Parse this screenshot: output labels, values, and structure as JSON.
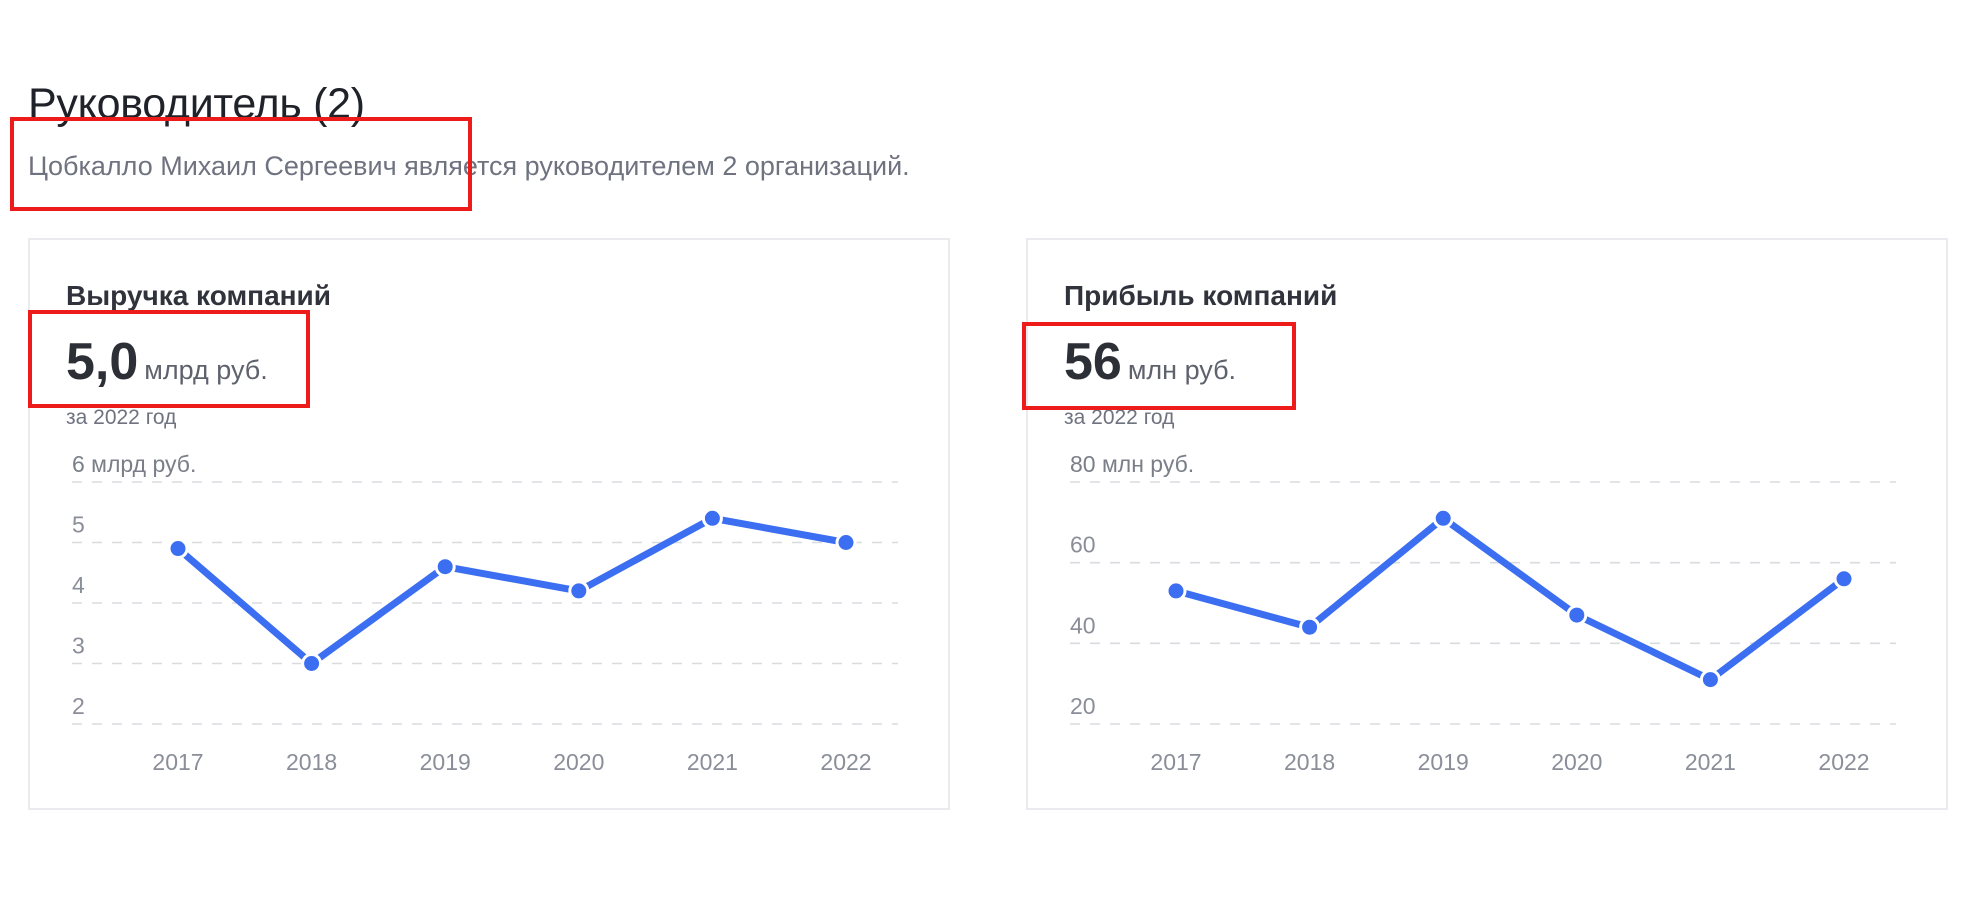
{
  "section": {
    "title": "Руководитель (2)",
    "description": "Цобкалло Михаил Сергеевич является руководителем 2 организаций."
  },
  "cards": [
    {
      "title": "Выручка компаний",
      "value": "5,0",
      "unit": "млрд руб.",
      "period": "за 2022 год"
    },
    {
      "title": "Прибыль компаний",
      "value": "56",
      "unit": "млн руб.",
      "period": "за 2022 год"
    }
  ],
  "colors": {
    "line": "#3b6ef0",
    "highlight": "#ee1b1b"
  },
  "chart_data": [
    {
      "type": "line",
      "title": "Выручка компаний",
      "ylabel": "6 млрд руб.",
      "x": [
        "2017",
        "2018",
        "2019",
        "2020",
        "2021",
        "2022"
      ],
      "values": [
        4.9,
        3.0,
        4.6,
        4.2,
        5.4,
        5.0
      ],
      "yticks": [
        {
          "value": 6,
          "label": ""
        },
        {
          "value": 5,
          "label": "5"
        },
        {
          "value": 4,
          "label": "4"
        },
        {
          "value": 3,
          "label": "3"
        },
        {
          "value": 2,
          "label": "2"
        }
      ],
      "ylim": [
        2,
        6
      ],
      "grid": true
    },
    {
      "type": "line",
      "title": "Прибыль компаний",
      "ylabel": "80 млн руб.",
      "x": [
        "2017",
        "2018",
        "2019",
        "2020",
        "2021",
        "2022"
      ],
      "values": [
        53,
        44,
        71,
        47,
        31,
        56
      ],
      "yticks": [
        {
          "value": 80,
          "label": ""
        },
        {
          "value": 60,
          "label": "60"
        },
        {
          "value": 40,
          "label": "40"
        },
        {
          "value": 20,
          "label": "20"
        }
      ],
      "ylim": [
        20,
        80
      ],
      "grid": true
    }
  ]
}
